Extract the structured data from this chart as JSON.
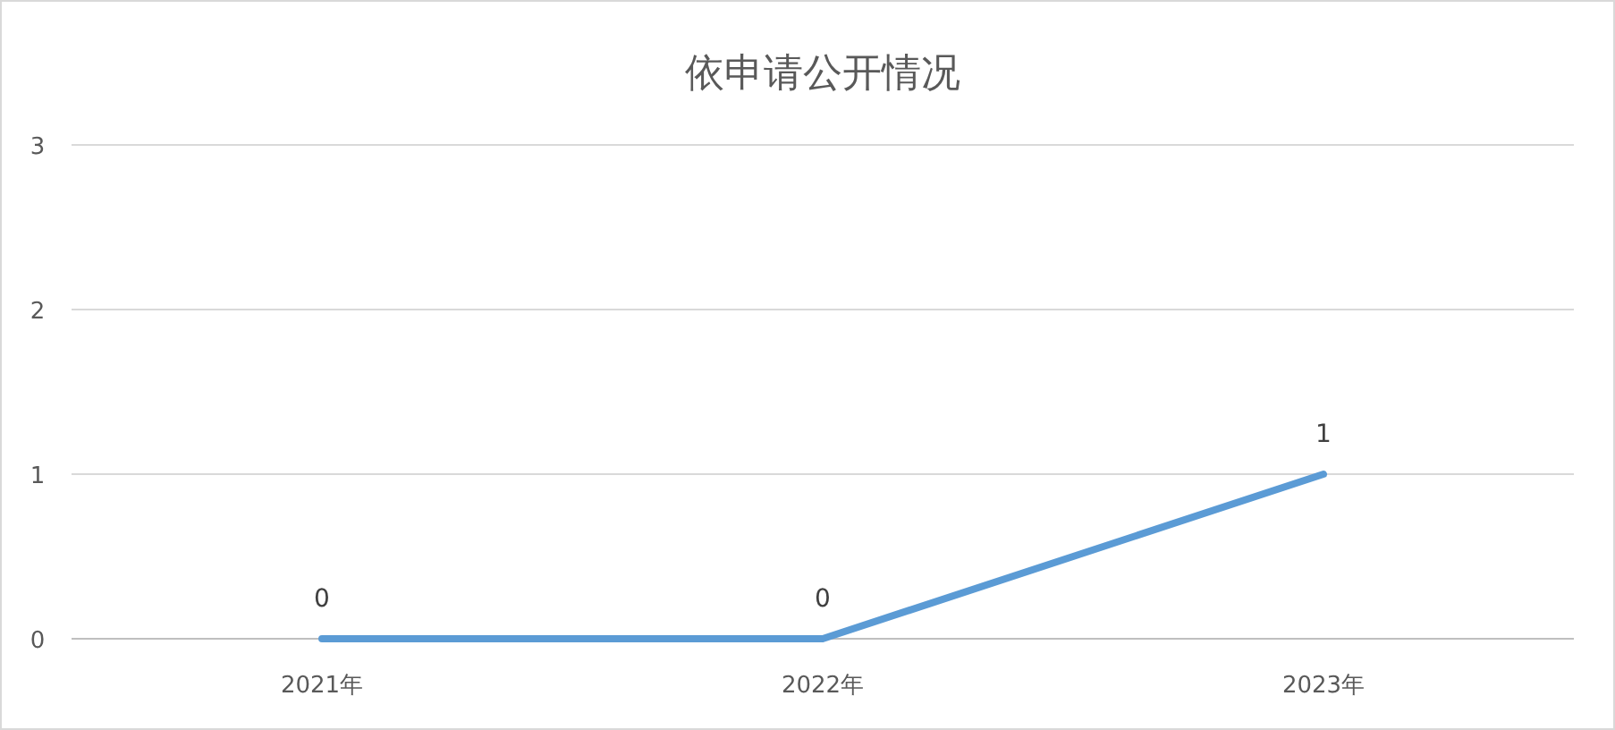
{
  "chart_data": {
    "type": "line",
    "title": "依申请公开情况",
    "categories": [
      "2021年",
      "2022年",
      "2023年"
    ],
    "series": [
      {
        "color": "#5b9bd5",
        "values": [
          0,
          0,
          1
        ]
      }
    ],
    "ylim": [
      0,
      3
    ],
    "yticks": [
      0,
      1,
      2,
      3
    ],
    "grid": "y",
    "data_labels": true
  }
}
